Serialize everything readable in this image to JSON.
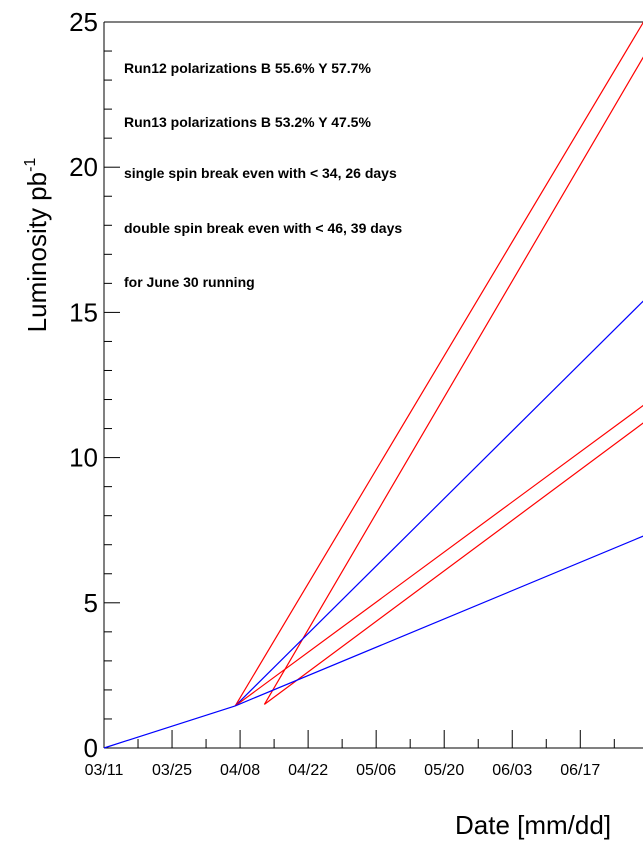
{
  "chart_data": {
    "type": "line",
    "xlabel": "Date [mm/dd]",
    "ylabel": "Luminosity pb",
    "ylabel_superscript": "-1",
    "ylim": [
      0,
      25
    ],
    "y_ticks": [
      0,
      5,
      10,
      15,
      20,
      25
    ],
    "x_tick_labels": [
      "03/11",
      "03/25",
      "04/08",
      "04/22",
      "05/06",
      "05/20",
      "06/03",
      "06/17"
    ],
    "annotations": [
      "Run12 polarizations B 55.6% Y 57.7%",
      "Run13 polarizations B 53.2% Y 47.5%",
      "single spin break even with < 34, 26 days",
      "double spin break even with < 46, 39 days",
      "for June 30 running"
    ],
    "colors": {
      "red": "#ff0000",
      "blue": "#0000ff"
    },
    "series": [
      {
        "color": "blue",
        "x": [
          "03/11",
          "04/07"
        ],
        "y": [
          0,
          1.45
        ]
      },
      {
        "color": "red",
        "x": [
          "04/07",
          "06/30"
        ],
        "y": [
          1.45,
          25.0
        ]
      },
      {
        "color": "red",
        "x": [
          "04/13",
          "06/30"
        ],
        "y": [
          1.5,
          23.8
        ]
      },
      {
        "color": "blue",
        "x": [
          "04/07",
          "06/30"
        ],
        "y": [
          1.45,
          15.4
        ]
      },
      {
        "color": "red",
        "x": [
          "04/07",
          "06/30"
        ],
        "y": [
          1.45,
          11.8
        ]
      },
      {
        "color": "red",
        "x": [
          "04/13",
          "06/30"
        ],
        "y": [
          1.5,
          11.2
        ]
      },
      {
        "color": "blue",
        "x": [
          "04/07",
          "06/30"
        ],
        "y": [
          1.45,
          7.3
        ]
      }
    ]
  }
}
